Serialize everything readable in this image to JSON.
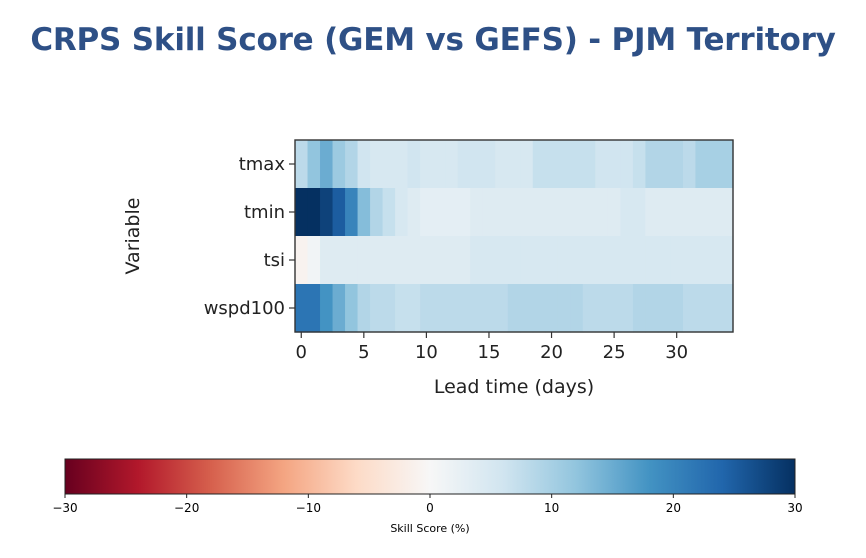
{
  "page": {
    "title": "CRPS Skill Score (GEM vs GEFS)  - PJM Territory"
  },
  "chart_data": {
    "type": "heatmap",
    "title": "",
    "xlabel": "Lead time (days)",
    "ylabel": "Variable",
    "rows": [
      "tmax",
      "tmin",
      "tsi",
      "wspd100"
    ],
    "x": [
      0,
      1,
      2,
      3,
      4,
      5,
      6,
      7,
      8,
      9,
      10,
      11,
      12,
      13,
      14,
      15,
      16,
      17,
      18,
      19,
      20,
      21,
      22,
      23,
      24,
      25,
      26,
      27,
      28,
      29,
      30,
      31,
      32,
      33,
      34
    ],
    "x_ticks": [
      0,
      5,
      10,
      15,
      20,
      25,
      30
    ],
    "xlim": [
      -0.5,
      34.5
    ],
    "values": [
      [
        8,
        12,
        15,
        11,
        9,
        6,
        5,
        5,
        5,
        6,
        5,
        5,
        5,
        6,
        6,
        6,
        5,
        5,
        5,
        7,
        7,
        7,
        7,
        7,
        6,
        6,
        6,
        7,
        9,
        9,
        9,
        8,
        10,
        10,
        10
      ],
      [
        30,
        30,
        28,
        25,
        20,
        13,
        9,
        7,
        5,
        4,
        3,
        3,
        3,
        3,
        4,
        4,
        4,
        4,
        4,
        4,
        4,
        4,
        4,
        4,
        4,
        4,
        5,
        5,
        4,
        4,
        4,
        4,
        4,
        4,
        4
      ],
      [
        -1,
        1,
        4,
        4,
        4,
        4,
        4,
        4,
        4,
        4,
        4,
        4,
        4,
        4,
        5,
        5,
        5,
        5,
        5,
        5,
        5,
        5,
        5,
        5,
        5,
        5,
        5,
        5,
        5,
        5,
        5,
        5,
        5,
        5,
        5
      ],
      [
        22,
        22,
        18,
        15,
        12,
        9,
        8,
        8,
        7,
        7,
        8,
        8,
        8,
        8,
        8,
        8,
        8,
        9,
        9,
        9,
        9,
        9,
        9,
        8,
        8,
        8,
        8,
        9,
        9,
        9,
        9,
        8,
        8,
        8,
        8
      ]
    ],
    "colorbar": {
      "label": "Skill Score (%)",
      "range": [
        -30,
        30
      ],
      "ticks": [
        -30,
        -20,
        -10,
        0,
        10,
        20,
        30
      ],
      "tick_labels": [
        "−30",
        "−20",
        "−10",
        "0",
        "10",
        "20",
        "30"
      ],
      "colormap": "RdBu",
      "colors": [
        "#67001f",
        "#b2182b",
        "#d6604d",
        "#f4a582",
        "#fddbc7",
        "#f7f7f7",
        "#d1e5f0",
        "#92c5de",
        "#4393c3",
        "#2166ac",
        "#053061"
      ]
    },
    "grid": false
  }
}
